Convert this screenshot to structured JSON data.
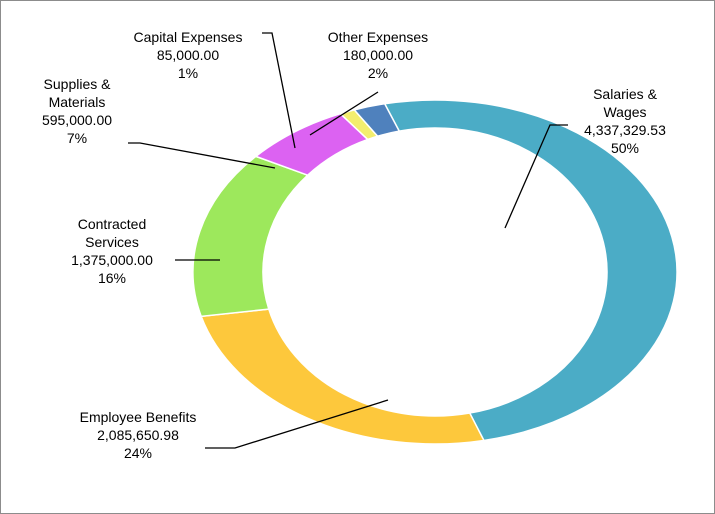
{
  "chart_data": {
    "type": "donut",
    "categories": [
      "Salaries & Wages",
      "Employee Benefits",
      "Contracted Services",
      "Supplies & Materials",
      "Capital Expenses",
      "Other Expenses"
    ],
    "values": [
      4337329.53,
      2085650.98,
      1375000,
      595000,
      85000,
      180000
    ],
    "value_labels": [
      "4,337,329.53",
      "2,085,650.98",
      "1,375,000.00",
      "595,000.00",
      "85,000.00",
      "180,000.00"
    ],
    "percent_labels": [
      "50%",
      "24%",
      "16%",
      "7%",
      "1%",
      "2%"
    ],
    "colors": [
      "#4bacc6",
      "#fdc83c",
      "#9de85c",
      "#dc62f2",
      "#f3ee6e",
      "#4f81bd"
    ]
  }
}
